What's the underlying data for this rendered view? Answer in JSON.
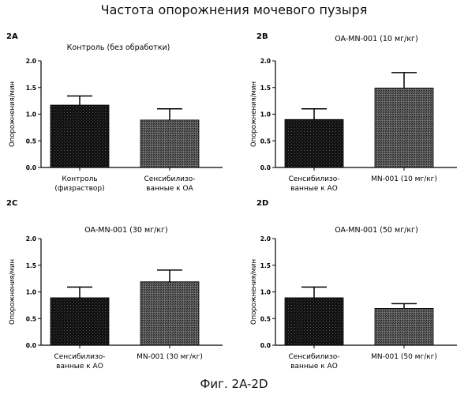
{
  "figure": {
    "title": "Частота опорожнения мочевого пузыря",
    "caption": "Фиг. 2A-2D"
  },
  "colors": {
    "bar_dark": "#111111",
    "bar_stipple": "#4a4a4a",
    "axis": "#000000"
  },
  "chart_data": [
    {
      "type": "bar",
      "panel": "2A",
      "title": "Контроль (без обработки)",
      "ylabel": "Опорожнения/мин",
      "ylim": [
        0,
        2.0
      ],
      "yticks": [
        "0.0",
        "0.5",
        "1.0",
        "1.5",
        "2.0"
      ],
      "categories": [
        [
          "Контроль",
          "(физраствор)"
        ],
        [
          "Сенсибилизо-",
          "ванные к ОА"
        ]
      ],
      "values": [
        1.17,
        0.89
      ],
      "errors": [
        0.17,
        0.21
      ],
      "styles": [
        "dark",
        "stipple"
      ]
    },
    {
      "type": "bar",
      "panel": "2B",
      "title": "OA-MN-001 (10 мг/кг)",
      "ylabel": "Опорожнения/мин",
      "ylim": [
        0,
        2.0
      ],
      "yticks": [
        "0.0",
        "0.5",
        "1.0",
        "1.5",
        "2.0"
      ],
      "categories": [
        [
          "Сенсибилизо-",
          "ванные к АО"
        ],
        [
          "MN-001 (10 мг/кг)"
        ]
      ],
      "values": [
        0.9,
        1.49
      ],
      "errors": [
        0.2,
        0.29
      ],
      "styles": [
        "dark",
        "stipple"
      ]
    },
    {
      "type": "bar",
      "panel": "2C",
      "title": "OA-MN-001 (30 мг/кг)",
      "ylabel": "Опорожнения/мин",
      "ylim": [
        0,
        2.0
      ],
      "yticks": [
        "0.0",
        "0.5",
        "1.0",
        "1.5",
        "2.0"
      ],
      "categories": [
        [
          "Сенсибилизо-",
          "ванные к АО"
        ],
        [
          "MN-001 (30 мг/кг)"
        ]
      ],
      "values": [
        0.89,
        1.19
      ],
      "errors": [
        0.2,
        0.22
      ],
      "styles": [
        "dark",
        "stipple"
      ]
    },
    {
      "type": "bar",
      "panel": "2D",
      "title": "OA-MN-001 (50 мг/кг)",
      "ylabel": "Опорожнения/мин",
      "ylim": [
        0,
        2.0
      ],
      "yticks": [
        "0.0",
        "0.5",
        "1.0",
        "1.5",
        "2.0"
      ],
      "categories": [
        [
          "Сенсибилизо-",
          "ванные к АО"
        ],
        [
          "MN-001 (50 мг/кг)"
        ]
      ],
      "values": [
        0.89,
        0.69
      ],
      "errors": [
        0.2,
        0.09
      ],
      "styles": [
        "dark",
        "stipple"
      ]
    }
  ]
}
